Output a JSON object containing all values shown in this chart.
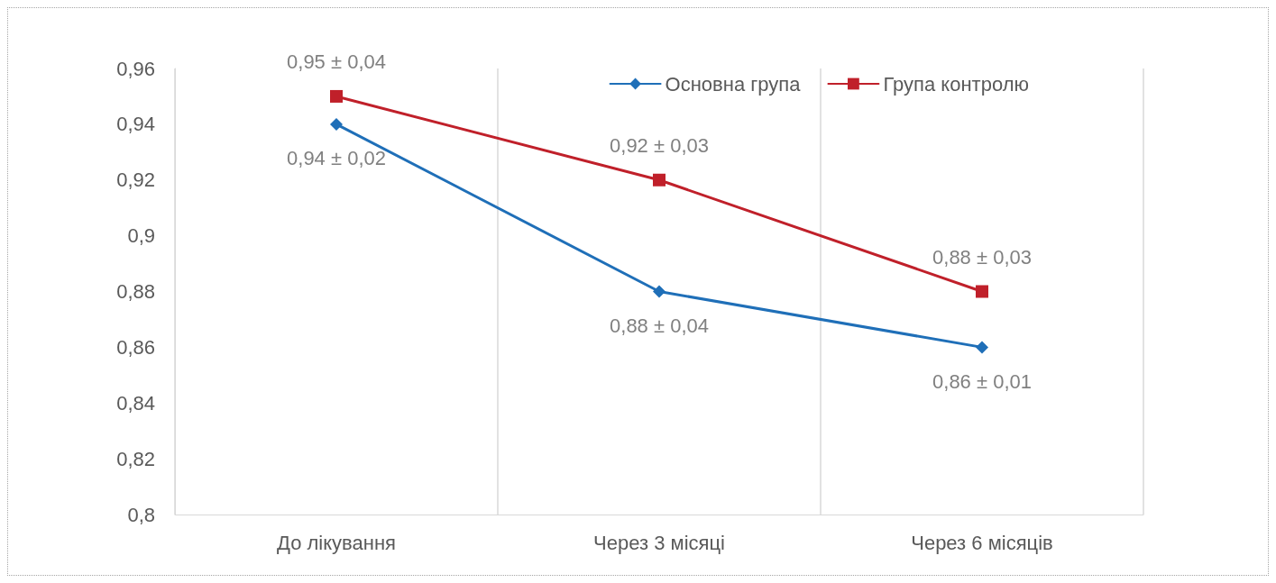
{
  "chart_data": {
    "type": "line",
    "categories": [
      "До лікування",
      "Через 3 місяці",
      "Через 6 місяців"
    ],
    "series": [
      {
        "name": "Основна група",
        "color": "#1f6fb8",
        "marker": "diamond",
        "values": [
          0.94,
          0.88,
          0.86
        ],
        "value_labels": [
          "0,94 ± 0,02",
          "0,88 ± 0,04",
          "0,86 ± 0,01"
        ]
      },
      {
        "name": "Група контролю",
        "color": "#c0202a",
        "marker": "square",
        "values": [
          0.95,
          0.92,
          0.88
        ],
        "value_labels": [
          "0,95 ± 0,04",
          "0,92 ± 0,03",
          "0,88 ± 0,03"
        ]
      }
    ],
    "ylim": [
      0.8,
      0.96
    ],
    "yticks": [
      {
        "value": 0.8,
        "label": "0,8"
      },
      {
        "value": 0.82,
        "label": "0,82"
      },
      {
        "value": 0.84,
        "label": "0,84"
      },
      {
        "value": 0.86,
        "label": "0,86"
      },
      {
        "value": 0.88,
        "label": "0,88"
      },
      {
        "value": 0.9,
        "label": "0,9"
      },
      {
        "value": 0.92,
        "label": "0,92"
      },
      {
        "value": 0.94,
        "label": "0,94"
      },
      {
        "value": 0.96,
        "label": "0,96"
      }
    ],
    "grid": "x",
    "legend": "top right",
    "line_style": "solid"
  }
}
